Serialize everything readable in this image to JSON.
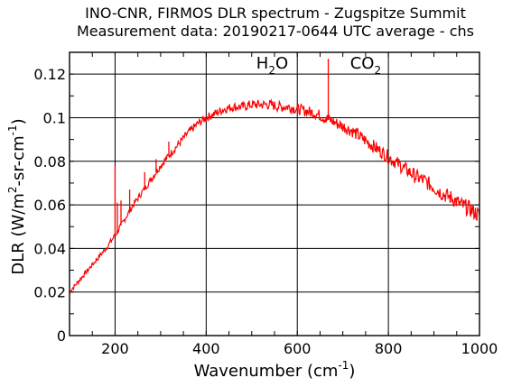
{
  "chart_data": {
    "type": "line",
    "title": "INO-CNR, FIRMOS DLR spectrum - Zugspitze Summit",
    "subtitle": "Measurement data: 20190217-0644 UTC average - chs",
    "xlabel": "Wavenumber (cm",
    "xlabel_sup": "-1",
    "xlabel_end": ")",
    "ylabel_parts": [
      "DLR (W/m",
      "2",
      "-sr-cm",
      "-1",
      ")"
    ],
    "xlim": [
      100,
      1000
    ],
    "ylim": [
      0,
      0.13
    ],
    "x_ticks": [
      200,
      400,
      600,
      800,
      1000
    ],
    "x_tick_labels": [
      "200",
      "400",
      "600",
      "800",
      "1000"
    ],
    "y_ticks": [
      0,
      0.02,
      0.04,
      0.06,
      0.08,
      0.1,
      0.12
    ],
    "y_tick_labels": [
      "0",
      "0.02",
      "0.04",
      "0.06",
      "0.08",
      "0.1",
      "0.12"
    ],
    "grid": true,
    "line_color": "#ff0000",
    "annotations": [
      {
        "text": "H",
        "sub": "2",
        "tail": "O",
        "x": 545,
        "y": 0.1225
      },
      {
        "text": "CO",
        "sub": "2",
        "tail": "",
        "x": 750,
        "y": 0.1225
      }
    ],
    "series": [
      {
        "x": [
          100,
          120,
          140,
          160,
          180,
          200,
          220,
          240,
          260,
          280,
          300,
          320,
          340,
          360,
          380,
          400,
          420,
          440,
          460,
          480,
          500,
          520,
          540,
          560,
          580,
          600,
          620,
          640,
          660,
          680,
          700,
          720,
          740,
          760,
          780,
          800,
          820,
          840,
          860,
          880,
          900,
          920,
          940,
          960,
          980,
          1000
        ],
        "y": [
          0.02,
          0.025,
          0.03,
          0.035,
          0.04,
          0.046,
          0.053,
          0.06,
          0.066,
          0.072,
          0.078,
          0.083,
          0.088,
          0.093,
          0.097,
          0.1,
          0.102,
          0.104,
          0.105,
          0.105,
          0.106,
          0.106,
          0.106,
          0.105,
          0.105,
          0.104,
          0.103,
          0.102,
          0.1,
          0.098,
          0.096,
          0.094,
          0.091,
          0.088,
          0.085,
          0.082,
          0.079,
          0.076,
          0.073,
          0.071,
          0.068,
          0.065,
          0.063,
          0.06,
          0.058,
          0.055
        ]
      }
    ],
    "spikes": [
      {
        "x": 200,
        "y": 0.078
      },
      {
        "x": 205,
        "y": 0.061
      },
      {
        "x": 213,
        "y": 0.062
      },
      {
        "x": 232,
        "y": 0.067
      },
      {
        "x": 265,
        "y": 0.075
      },
      {
        "x": 290,
        "y": 0.081
      },
      {
        "x": 318,
        "y": 0.089
      },
      {
        "x": 668,
        "y": 0.127
      }
    ]
  }
}
